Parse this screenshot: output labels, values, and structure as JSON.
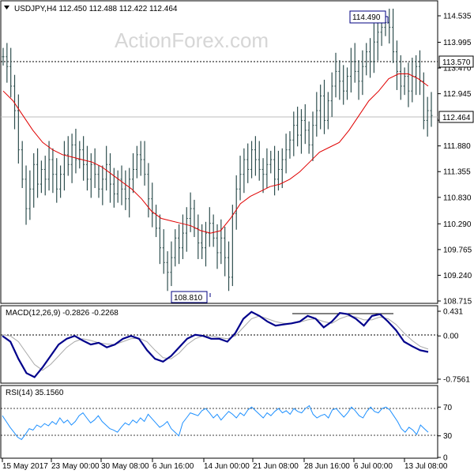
{
  "watermark": "ActionForex.com",
  "price_panel": {
    "header": "USDJPY,H4  112.450 112.488 112.422 112.464",
    "price_ticks": [
      "114.535",
      "113.995",
      "113.470",
      "112.945",
      "112.405",
      "111.880",
      "111.355",
      "110.830",
      "110.290",
      "109.765",
      "109.240",
      "108.715"
    ],
    "current_price_label": "112.464",
    "resistance_label": "113.570",
    "high_label": "114.490",
    "low_label": "108.810"
  },
  "macd_panel": {
    "header": "MACD(12,26,9) -0.2826 -0.2268",
    "ticks": [
      "0.431",
      "0.00",
      "-0.7561"
    ]
  },
  "rsi_panel": {
    "header": "RSI(14) 35.1560",
    "ticks": [
      "70",
      "30",
      "0"
    ]
  },
  "x_axis": {
    "labels": [
      "15 May 2017",
      "23 May 00:00",
      "30 May 08:00",
      "6 Jun 16:00",
      "14 Jun 00:00",
      "21 Jun 08:00",
      "28 Jun 16:00",
      "6 Jul 00:00",
      "13 Jul 08:00"
    ]
  },
  "colors": {
    "bars": "#2f4f4f",
    "ma": "#e00000",
    "macd": "#00008b",
    "signal": "#a9a9a9",
    "rsi": "#1e90ff",
    "grid_lines": "#000000",
    "label_box_border": "#000080"
  },
  "chart_data": [
    {
      "type": "line",
      "title": "USDJPY,H4",
      "ylim": [
        108.715,
        114.8
      ],
      "y_ticks": [
        114.535,
        113.995,
        113.47,
        112.945,
        112.405,
        111.88,
        111.355,
        110.83,
        110.29,
        109.765,
        109.24,
        108.715
      ],
      "x_labels": [
        "15 May 2017",
        "23 May 00:00",
        "30 May 08:00",
        "6 Jun 16:00",
        "14 Jun 00:00",
        "21 Jun 08:00",
        "28 Jun 16:00",
        "6 Jul 00:00",
        "13 Jul 08:00"
      ],
      "ohlc_last": {
        "open": 112.45,
        "high": 112.488,
        "low": 112.422,
        "close": 112.464
      },
      "series": [
        {
          "style": "bars",
          "values": [
            113.7,
            113.5,
            113.1,
            112.6,
            111.8,
            111.2,
            110.6,
            111.0,
            111.5,
            111.1,
            111.4,
            111.2,
            111.6,
            111.3,
            111.0,
            111.3,
            111.7,
            111.5,
            111.9,
            111.6,
            111.8,
            111.5,
            111.2,
            111.5,
            111.3,
            111.0,
            111.2,
            111.5,
            111.1,
            110.9,
            111.2,
            111.0,
            110.8,
            111.2,
            111.4,
            111.7,
            111.6,
            111.3,
            110.8,
            110.5,
            110.2,
            109.8,
            109.5,
            109.3,
            109.6,
            110.0,
            109.8,
            110.1,
            110.4,
            110.6,
            110.2,
            109.9,
            109.8,
            110.1,
            110.3,
            110.0,
            109.7,
            110.0,
            109.6,
            109.2,
            110.5,
            111.0,
            111.3,
            111.6,
            111.4,
            111.8,
            111.6,
            111.4,
            111.3,
            111.5,
            111.6,
            111.2,
            111.4,
            111.6,
            111.8,
            112.0,
            112.3,
            112.1,
            112.4,
            112.2,
            111.9,
            112.3,
            112.6,
            112.9,
            112.4,
            112.8,
            113.1,
            113.4,
            113.2,
            113.0,
            113.3,
            113.6,
            113.4,
            113.2,
            113.5,
            113.8,
            113.6,
            114.0,
            114.2,
            114.3,
            114.4,
            114.3,
            113.8,
            113.4,
            113.1,
            113.3,
            113.0,
            113.3,
            113.5,
            113.2,
            112.4,
            112.6,
            112.5
          ]
        },
        {
          "name": "",
          "style": "moving-average",
          "values": [
            113.0,
            112.8,
            112.5,
            112.2,
            111.95,
            111.8,
            111.7,
            111.65,
            111.6,
            111.55,
            111.45,
            111.3,
            111.15,
            111.0,
            110.8,
            110.55,
            110.4,
            110.35,
            110.3,
            110.25,
            110.15,
            110.1,
            110.15,
            110.4,
            110.7,
            110.85,
            110.95,
            111.05,
            111.1,
            111.2,
            111.35,
            111.55,
            111.75,
            111.85,
            111.95,
            112.2,
            112.5,
            112.8,
            113.0,
            113.25,
            113.35,
            113.35,
            113.25,
            113.1
          ]
        }
      ],
      "annotations": [
        "114.490",
        "113.570",
        "112.464",
        "108.810"
      ]
    },
    {
      "type": "line",
      "title": "MACD(12,26,9)",
      "ylim": [
        -0.7561,
        0.431
      ],
      "y_ticks": [
        0.431,
        0.0,
        -0.7561
      ],
      "series": [
        {
          "name": "MACD",
          "values": [
            0.0,
            -0.1,
            -0.4,
            -0.65,
            -0.72,
            -0.55,
            -0.35,
            -0.15,
            -0.05,
            0.0,
            -0.08,
            -0.15,
            -0.12,
            -0.2,
            -0.15,
            -0.05,
            0.0,
            -0.05,
            -0.25,
            -0.4,
            -0.45,
            -0.35,
            -0.2,
            -0.05,
            0.02,
            0.0,
            -0.05,
            -0.05,
            -0.1,
            0.05,
            0.3,
            0.42,
            0.35,
            0.25,
            0.18,
            0.2,
            0.22,
            0.25,
            0.35,
            0.3,
            0.15,
            0.25,
            0.4,
            0.38,
            0.3,
            0.18,
            0.35,
            0.38,
            0.25,
            0.1,
            -0.1,
            -0.18,
            -0.25,
            -0.28
          ]
        },
        {
          "name": "Signal",
          "values": [
            0.02,
            0.0,
            -0.1,
            -0.3,
            -0.5,
            -0.6,
            -0.5,
            -0.35,
            -0.2,
            -0.1,
            -0.05,
            -0.08,
            -0.12,
            -0.14,
            -0.15,
            -0.1,
            -0.05,
            -0.04,
            -0.1,
            -0.25,
            -0.38,
            -0.4,
            -0.3,
            -0.15,
            -0.05,
            0.0,
            0.0,
            -0.03,
            -0.05,
            0.0,
            0.15,
            0.3,
            0.35,
            0.3,
            0.25,
            0.22,
            0.22,
            0.24,
            0.28,
            0.3,
            0.25,
            0.22,
            0.3,
            0.35,
            0.33,
            0.28,
            0.28,
            0.33,
            0.3,
            0.2,
            0.05,
            -0.08,
            -0.18,
            -0.23
          ]
        }
      ]
    },
    {
      "type": "line",
      "title": "RSI(14)",
      "ylim": [
        0,
        100
      ],
      "y_ticks": [
        70,
        30,
        0
      ],
      "series": [
        {
          "name": "RSI",
          "values": [
            58,
            50,
            42,
            35,
            28,
            25,
            32,
            40,
            38,
            45,
            42,
            47,
            44,
            50,
            46,
            55,
            48,
            52,
            45,
            50,
            58,
            62,
            55,
            48,
            52,
            58,
            50,
            45,
            40,
            38,
            35,
            42,
            48,
            45,
            52,
            48,
            55,
            50,
            60,
            54,
            48,
            42,
            45,
            50,
            40,
            35,
            30,
            48,
            55,
            62,
            60,
            58,
            65,
            68,
            62,
            55,
            60,
            52,
            58,
            64,
            60,
            55,
            62,
            58,
            66,
            70,
            65,
            60,
            55,
            62,
            58,
            64,
            68,
            62,
            65,
            60,
            68,
            64,
            62,
            68,
            72,
            60,
            55,
            58,
            60,
            55,
            66,
            68,
            62,
            56,
            62,
            70,
            65,
            58,
            55,
            64,
            70,
            64,
            62,
            68,
            70,
            66,
            58,
            50,
            40,
            35,
            42,
            38,
            32,
            45,
            40,
            35
          ]
        }
      ]
    }
  ]
}
